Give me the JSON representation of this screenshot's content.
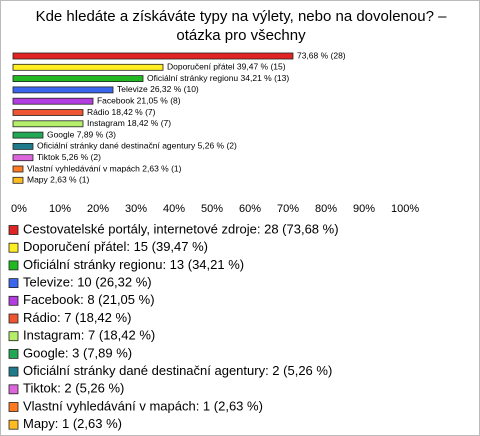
{
  "chart_data": {
    "type": "bar",
    "orientation": "horizontal",
    "title": "Kde hledáte a získáváte typy na výlety, nebo na dovolenou? – otázka pro všechny",
    "categories": [
      "Cestovatelské portály, internetové zdroje",
      "Doporučení přátel",
      "Oficiální stránky regionu",
      "Televize",
      "Facebook",
      "Rádio",
      "Instagram",
      "Google",
      "Oficiální stránky dané destinační agentury",
      "Tiktok",
      "Vlastní vyhledávání v mapách",
      "Mapy"
    ],
    "values": [
      73.68,
      39.47,
      34.21,
      26.32,
      21.05,
      18.42,
      18.42,
      7.89,
      5.26,
      5.26,
      2.63,
      2.63
    ],
    "value_labels": [
      "73,68 % (28)",
      "Doporučení přátel 39,47 % (15)",
      "Oficiální stránky regionu 34,21 % (13)",
      "Televize 26,32 % (10)",
      "Facebook 21,05 % (8)",
      "Rádio 18,42 % (7)",
      "Instagram 18,42 % (7)",
      "Google 7,89 % (3)",
      "Oficiální stránky dané destinační agentury 5,26 % (2)",
      "Tiktok 5,26 % (2)",
      "Vlastní vyhledávání v mapách 2,63 % (1)",
      "Mapy 2,63 % (1)"
    ],
    "colors": [
      "#e02424",
      "#ffee22",
      "#22b822",
      "#3a66ee",
      "#b23de0",
      "#ee5533",
      "#b4ee6a",
      "#22a855",
      "#1f7a8c",
      "#dd66dd",
      "#ff7a22",
      "#ffbb22"
    ],
    "legend_labels": [
      "Cestovatelské portály, internetové zdroje: 28 (73,68 %)",
      "Doporučení přátel: 15 (39,47 %)",
      "Oficiální stránky regionu: 13 (34,21 %)",
      "Televize: 10 (26,32 %)",
      "Facebook: 8 (21,05 %)",
      "Rádio: 7 (18,42 %)",
      "Instagram: 7 (18,42 %)",
      "Google: 3 (7,89 %)",
      "Oficiální stránky dané destinační agentury: 2 (5,26 %)",
      "Tiktok: 2 (5,26 %)",
      "Vlastní vyhledávání v mapách: 1 (2,63 %)",
      "Mapy: 1 (2,63 %)"
    ],
    "xlim": [
      0,
      100
    ],
    "xticks": [
      {
        "value": 0,
        "label": "0%"
      },
      {
        "value": 10,
        "label": "10%"
      },
      {
        "value": 20,
        "label": "20%"
      },
      {
        "value": 30,
        "label": "30%"
      },
      {
        "value": 40,
        "label": "40%"
      },
      {
        "value": 50,
        "label": "50%"
      },
      {
        "value": 60,
        "label": "60%"
      },
      {
        "value": 70,
        "label": "70%"
      },
      {
        "value": 80,
        "label": "80%"
      },
      {
        "value": 90,
        "label": "90%"
      },
      {
        "value": 100,
        "label": "100%"
      }
    ]
  }
}
